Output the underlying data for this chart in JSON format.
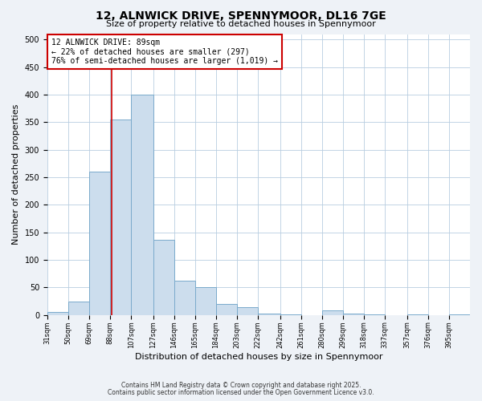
{
  "title": "12, ALNWICK DRIVE, SPENNYMOOR, DL16 7GE",
  "subtitle": "Size of property relative to detached houses in Spennymoor",
  "xlabel": "Distribution of detached houses by size in Spennymoor",
  "ylabel": "Number of detached properties",
  "bar_color": "#ccdded",
  "bar_edge_color": "#7aaacc",
  "annotation_box_color": "#cc0000",
  "reference_line_color": "#cc0000",
  "reference_line_x": 89,
  "annotation_text": "12 ALNWICK DRIVE: 89sqm\n← 22% of detached houses are smaller (297)\n76% of semi-detached houses are larger (1,019) →",
  "bins": [
    31,
    50,
    69,
    88,
    107,
    127,
    146,
    165,
    184,
    203,
    222,
    242,
    261,
    280,
    299,
    318,
    337,
    357,
    376,
    395,
    414
  ],
  "counts": [
    5,
    25,
    260,
    355,
    400,
    137,
    63,
    50,
    20,
    15,
    2,
    1,
    0,
    8,
    2,
    1,
    0,
    1,
    0,
    1
  ],
  "ylim": [
    0,
    510
  ],
  "yticks": [
    0,
    50,
    100,
    150,
    200,
    250,
    300,
    350,
    400,
    450,
    500
  ],
  "footer_line1": "Contains HM Land Registry data © Crown copyright and database right 2025.",
  "footer_line2": "Contains public sector information licensed under the Open Government Licence v3.0.",
  "background_color": "#eef2f7",
  "plot_background": "#ffffff",
  "grid_color": "#b8cde0"
}
